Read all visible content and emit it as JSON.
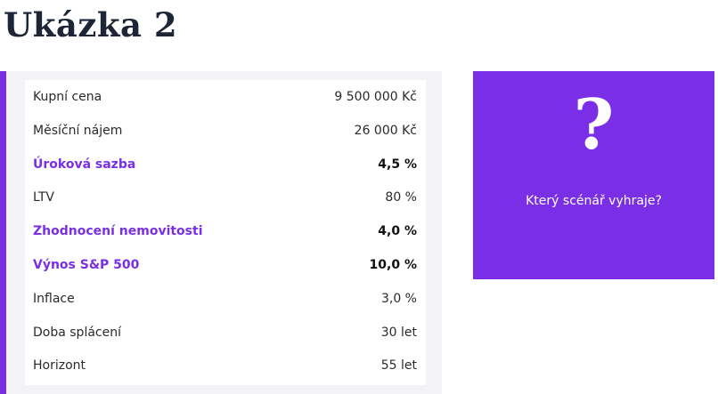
{
  "header": {
    "title": "Ukázka 2"
  },
  "table": {
    "rows": [
      [
        "Kupní cena",
        "9 500 000 Kč"
      ],
      [
        "Měsíční nájem",
        "26 000 Kč"
      ],
      [
        "Úroková sazba",
        "4,5 %"
      ],
      [
        "LTV",
        "80 %"
      ],
      [
        "Zhodnocení nemovitosti",
        "4,0 %"
      ],
      [
        "Výnos S&P 500",
        "10,0 %"
      ],
      [
        "Inflace",
        "3,0 %"
      ],
      [
        "Doba splácení",
        "30 let"
      ],
      [
        "Horizont",
        "55 let"
      ]
    ]
  },
  "card": {
    "symbol": "?",
    "question": "Který scénář vyhraje?"
  }
}
